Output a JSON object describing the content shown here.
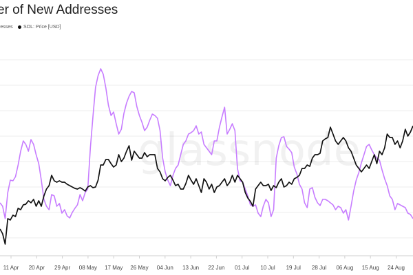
{
  "chart_data": {
    "type": "line",
    "title": "er of New Addresses",
    "watermark": "glassnode",
    "legend_placement": "top-left",
    "x_tick_labels": [
      "11 Apr",
      "20 Apr",
      "29 Apr",
      "08 May",
      "17 May",
      "26 May",
      "04 Jun",
      "13 Jun",
      "22 Jun",
      "01 Jul",
      "10 Jul",
      "19 Jul",
      "28 Jul",
      "06 Aug",
      "15 Aug",
      "24 Aug"
    ],
    "grid": "horizontal",
    "series": [
      {
        "name": "resses",
        "color": "#c77dff",
        "values": [
          295,
          300,
          318,
          280,
          262,
          263,
          257,
          240,
          220,
          205,
          210,
          220,
          203,
          210,
          225,
          238,
          262,
          290,
          300,
          305,
          283,
          285,
          300,
          296,
          310,
          305,
          314,
          317,
          309,
          303,
          298,
          283,
          292,
          280,
          275,
          215,
          170,
          127,
          110,
          100,
          108,
          128,
          153,
          168,
          163,
          180,
          195,
          188,
          165,
          150,
          140,
          133,
          135,
          155,
          168,
          178,
          190,
          185,
          175,
          166,
          168,
          172,
          190,
          230,
          250,
          262,
          270,
          255,
          245,
          240,
          225,
          210,
          205,
          195,
          193,
          190,
          183,
          195,
          192,
          210,
          215,
          220,
          225,
          205,
          205,
          185,
          170,
          156,
          195,
          188,
          180,
          190,
          245,
          263,
          265,
          275,
          285,
          298,
          300,
          298,
          310,
          315,
          300,
          290,
          295,
          315,
          305,
          230,
          212,
          200,
          199,
          213,
          217,
          222,
          243,
          253,
          268,
          275,
          295,
          302,
          275,
          273,
          287,
          295,
          299,
          290,
          290,
          292,
          295,
          298,
          305,
          300,
          302,
          310,
          305,
          320,
          300,
          278,
          262,
          251,
          237,
          225,
          213,
          210,
          218,
          225,
          230,
          233,
          247,
          260,
          270,
          285,
          290,
          305,
          296,
          298,
          300,
          302,
          310,
          312,
          318
        ]
      },
      {
        "name": "SOL: Price [USD]",
        "color": "#111111",
        "values": [
          333,
          340,
          355,
          318,
          320,
          313,
          315,
          303,
          305,
          298,
          297,
          292,
          295,
          290,
          300,
          292,
          300,
          285,
          275,
          270,
          255,
          263,
          265,
          263,
          265,
          265,
          268,
          270,
          272,
          274,
          275,
          273,
          275,
          278,
          272,
          270,
          273,
          272,
          262,
          240,
          240,
          232,
          232,
          238,
          243,
          240,
          225,
          235,
          230,
          220,
          212,
          233,
          220,
          225,
          230,
          230,
          222,
          228,
          225,
          225,
          225,
          245,
          250,
          260,
          263,
          258,
          255,
          262,
          270,
          268,
          275,
          275,
          267,
          255,
          262,
          268,
          260,
          270,
          280,
          260,
          265,
          275,
          268,
          280,
          272,
          270,
          265,
          260,
          270,
          265,
          255,
          265,
          255,
          260,
          265,
          280,
          288,
          293,
          300,
          275,
          270,
          265,
          270,
          270,
          268,
          277,
          270,
          273,
          265,
          260,
          272,
          270,
          265,
          268,
          260,
          258,
          255,
          245,
          245,
          240,
          242,
          230,
          225,
          225,
          223,
          205,
          202,
          200,
          185,
          195,
          205,
          210,
          205,
          200,
          205,
          215,
          220,
          230,
          240,
          245,
          250,
          245,
          240,
          245,
          235,
          225,
          238,
          220,
          225,
          215,
          195,
          200,
          200,
          210,
          205,
          215,
          205,
          188,
          198,
          192,
          183
        ]
      }
    ]
  }
}
